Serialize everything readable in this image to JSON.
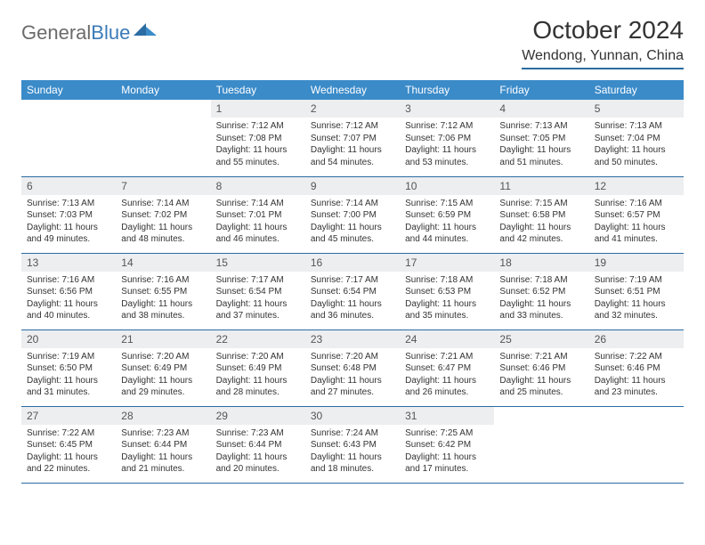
{
  "logo": {
    "word1": "General",
    "word2": "Blue"
  },
  "title": "October 2024",
  "subtitle": "Wendong, Yunnan, China",
  "colors": {
    "header_bg": "#3b8bc9",
    "header_text": "#ffffff",
    "daynum_bg": "#eceef0",
    "border": "#2b6ca3",
    "logo_gray": "#6b6b6b",
    "logo_blue": "#3a7ab8"
  },
  "weekdays": [
    "Sunday",
    "Monday",
    "Tuesday",
    "Wednesday",
    "Thursday",
    "Friday",
    "Saturday"
  ],
  "weeks": [
    [
      null,
      null,
      {
        "n": "1",
        "sr": "7:12 AM",
        "ss": "7:08 PM",
        "dl": "11 hours and 55 minutes."
      },
      {
        "n": "2",
        "sr": "7:12 AM",
        "ss": "7:07 PM",
        "dl": "11 hours and 54 minutes."
      },
      {
        "n": "3",
        "sr": "7:12 AM",
        "ss": "7:06 PM",
        "dl": "11 hours and 53 minutes."
      },
      {
        "n": "4",
        "sr": "7:13 AM",
        "ss": "7:05 PM",
        "dl": "11 hours and 51 minutes."
      },
      {
        "n": "5",
        "sr": "7:13 AM",
        "ss": "7:04 PM",
        "dl": "11 hours and 50 minutes."
      }
    ],
    [
      {
        "n": "6",
        "sr": "7:13 AM",
        "ss": "7:03 PM",
        "dl": "11 hours and 49 minutes."
      },
      {
        "n": "7",
        "sr": "7:14 AM",
        "ss": "7:02 PM",
        "dl": "11 hours and 48 minutes."
      },
      {
        "n": "8",
        "sr": "7:14 AM",
        "ss": "7:01 PM",
        "dl": "11 hours and 46 minutes."
      },
      {
        "n": "9",
        "sr": "7:14 AM",
        "ss": "7:00 PM",
        "dl": "11 hours and 45 minutes."
      },
      {
        "n": "10",
        "sr": "7:15 AM",
        "ss": "6:59 PM",
        "dl": "11 hours and 44 minutes."
      },
      {
        "n": "11",
        "sr": "7:15 AM",
        "ss": "6:58 PM",
        "dl": "11 hours and 42 minutes."
      },
      {
        "n": "12",
        "sr": "7:16 AM",
        "ss": "6:57 PM",
        "dl": "11 hours and 41 minutes."
      }
    ],
    [
      {
        "n": "13",
        "sr": "7:16 AM",
        "ss": "6:56 PM",
        "dl": "11 hours and 40 minutes."
      },
      {
        "n": "14",
        "sr": "7:16 AM",
        "ss": "6:55 PM",
        "dl": "11 hours and 38 minutes."
      },
      {
        "n": "15",
        "sr": "7:17 AM",
        "ss": "6:54 PM",
        "dl": "11 hours and 37 minutes."
      },
      {
        "n": "16",
        "sr": "7:17 AM",
        "ss": "6:54 PM",
        "dl": "11 hours and 36 minutes."
      },
      {
        "n": "17",
        "sr": "7:18 AM",
        "ss": "6:53 PM",
        "dl": "11 hours and 35 minutes."
      },
      {
        "n": "18",
        "sr": "7:18 AM",
        "ss": "6:52 PM",
        "dl": "11 hours and 33 minutes."
      },
      {
        "n": "19",
        "sr": "7:19 AM",
        "ss": "6:51 PM",
        "dl": "11 hours and 32 minutes."
      }
    ],
    [
      {
        "n": "20",
        "sr": "7:19 AM",
        "ss": "6:50 PM",
        "dl": "11 hours and 31 minutes."
      },
      {
        "n": "21",
        "sr": "7:20 AM",
        "ss": "6:49 PM",
        "dl": "11 hours and 29 minutes."
      },
      {
        "n": "22",
        "sr": "7:20 AM",
        "ss": "6:49 PM",
        "dl": "11 hours and 28 minutes."
      },
      {
        "n": "23",
        "sr": "7:20 AM",
        "ss": "6:48 PM",
        "dl": "11 hours and 27 minutes."
      },
      {
        "n": "24",
        "sr": "7:21 AM",
        "ss": "6:47 PM",
        "dl": "11 hours and 26 minutes."
      },
      {
        "n": "25",
        "sr": "7:21 AM",
        "ss": "6:46 PM",
        "dl": "11 hours and 25 minutes."
      },
      {
        "n": "26",
        "sr": "7:22 AM",
        "ss": "6:46 PM",
        "dl": "11 hours and 23 minutes."
      }
    ],
    [
      {
        "n": "27",
        "sr": "7:22 AM",
        "ss": "6:45 PM",
        "dl": "11 hours and 22 minutes."
      },
      {
        "n": "28",
        "sr": "7:23 AM",
        "ss": "6:44 PM",
        "dl": "11 hours and 21 minutes."
      },
      {
        "n": "29",
        "sr": "7:23 AM",
        "ss": "6:44 PM",
        "dl": "11 hours and 20 minutes."
      },
      {
        "n": "30",
        "sr": "7:24 AM",
        "ss": "6:43 PM",
        "dl": "11 hours and 18 minutes."
      },
      {
        "n": "31",
        "sr": "7:25 AM",
        "ss": "6:42 PM",
        "dl": "11 hours and 17 minutes."
      },
      null,
      null
    ]
  ],
  "labels": {
    "sunrise": "Sunrise:",
    "sunset": "Sunset:",
    "daylight": "Daylight:"
  }
}
